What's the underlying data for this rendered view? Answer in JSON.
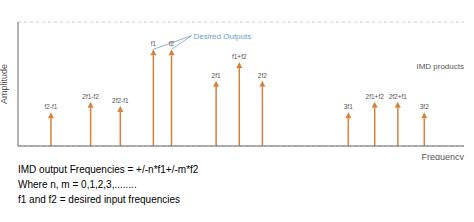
{
  "chart_data": {
    "type": "stem",
    "x": [
      1.0,
      2.2,
      3.1,
      4.1,
      4.65,
      6.0,
      6.7,
      7.4,
      10.0,
      10.8,
      11.5,
      12.3
    ],
    "values": [
      0.32,
      0.42,
      0.38,
      0.92,
      0.92,
      0.62,
      0.8,
      0.62,
      0.32,
      0.42,
      0.42,
      0.32
    ],
    "categories": [
      "f2-f1",
      "2f1-f2",
      "2f2-f1",
      "f1",
      "f2",
      "2f1",
      "f1+f2",
      "2f2",
      "3f1",
      "2f1+f2",
      "2f2+f1",
      "3f2"
    ],
    "color": "#D4823A",
    "xlabel": "Frequency",
    "ylabel": "Amplitude",
    "xlim": [
      0,
      13.5
    ],
    "ylim": [
      0,
      1.18
    ],
    "yticks": [
      0.32,
      0.62,
      0.92
    ],
    "grid": true,
    "tick_labels": false,
    "annotations": [
      {
        "text": "Desired Outputs",
        "color": "#6b9ec8",
        "targets": [
          "f1",
          "f2"
        ]
      },
      {
        "text": "IMD products"
      },
      {
        "text": "IMD output Frequencies = +/-n*f1+/-m*f2"
      },
      {
        "text": "Where n, m = 0,1,2,3,........"
      },
      {
        "text": "f1 and f2 = desired input frequencies"
      }
    ]
  }
}
